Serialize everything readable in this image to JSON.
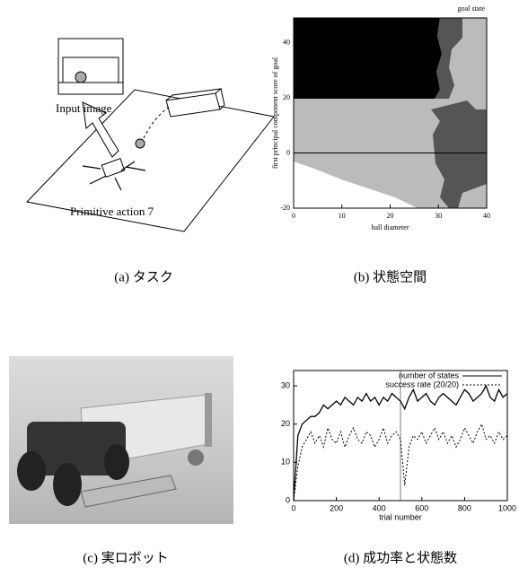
{
  "panel_a": {
    "input_label": "Input image",
    "action_label": "Primitive action 7",
    "caption": "(a) タスク"
  },
  "panel_c": {
    "caption": "(c) 実ロボット"
  },
  "chart_data": [
    {
      "type": "region",
      "caption": "(b) 状態空間",
      "annotation": "goal state",
      "xlabel": "ball diameter",
      "ylabel": "first principal component score of goal",
      "xlim": [
        0,
        40
      ],
      "ylim": [
        -20,
        49
      ],
      "xticks": [
        0,
        10,
        20,
        30,
        40
      ],
      "yticks": [
        -20,
        0,
        20,
        40
      ]
    },
    {
      "type": "line",
      "caption": "(d) 成功率と状態数",
      "xlabel": "trial number",
      "xlim": [
        0,
        1000
      ],
      "ylim": [
        0,
        34
      ],
      "xticks": [
        0,
        200,
        400,
        600,
        800,
        1000
      ],
      "yticks": [
        0,
        10,
        20,
        30
      ],
      "vline": 500,
      "legend": "upper right",
      "x": [
        0,
        20,
        40,
        60,
        80,
        100,
        120,
        140,
        160,
        180,
        200,
        220,
        240,
        260,
        280,
        300,
        320,
        340,
        360,
        380,
        400,
        420,
        440,
        460,
        480,
        500,
        520,
        540,
        560,
        580,
        600,
        620,
        640,
        660,
        680,
        700,
        720,
        740,
        760,
        780,
        800,
        820,
        840,
        860,
        880,
        900,
        920,
        940,
        960,
        980,
        1000
      ],
      "series": [
        {
          "name": "number of states",
          "color": "#000000",
          "dash": "none",
          "values": [
            0,
            17,
            20,
            21,
            22,
            22,
            23,
            25,
            24,
            25,
            26,
            25,
            27,
            26,
            25,
            27,
            26,
            28,
            26,
            27,
            25,
            27,
            26,
            28,
            27,
            26,
            24,
            27,
            29,
            26,
            27,
            28,
            26,
            25,
            27,
            28,
            27,
            26,
            25,
            27,
            29,
            28,
            26,
            27,
            28,
            30,
            27,
            26,
            29,
            27,
            28
          ]
        },
        {
          "name": "success rate (20/20)",
          "color": "#000000",
          "dash": "2,2",
          "values": [
            0,
            9,
            14,
            16,
            18,
            15,
            17,
            14,
            19,
            16,
            15,
            18,
            14,
            17,
            19,
            16,
            15,
            18,
            17,
            14,
            16,
            19,
            15,
            17,
            18,
            16,
            4,
            14,
            17,
            16,
            18,
            15,
            17,
            19,
            16,
            18,
            15,
            17,
            14,
            16,
            19,
            17,
            15,
            18,
            20,
            16,
            17,
            15,
            18,
            16,
            17
          ]
        }
      ]
    }
  ]
}
